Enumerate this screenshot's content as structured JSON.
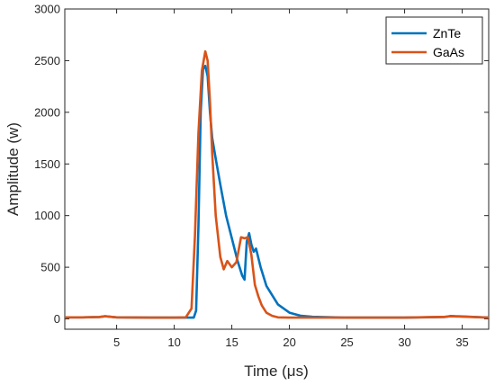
{
  "chart_data": {
    "type": "line",
    "title": "",
    "xlabel": "Time (μs)",
    "ylabel": "Amplitude (w)",
    "xlim": [
      0.5,
      37.3
    ],
    "ylim": [
      -100,
      3000
    ],
    "xticks": [
      5,
      10,
      15,
      20,
      25,
      30,
      35
    ],
    "yticks": [
      0,
      500,
      1000,
      1500,
      2000,
      2500,
      3000
    ],
    "grid": false,
    "legend_position": "top-right",
    "series": [
      {
        "name": "ZnTe",
        "color": "#0072BD",
        "x": [
          0.5,
          2,
          3.5,
          4,
          5,
          8,
          10,
          11,
          11.7,
          11.9,
          12.1,
          12.3,
          12.5,
          12.7,
          12.9,
          13.1,
          13.3,
          13.6,
          14,
          14.5,
          15,
          15.5,
          15.9,
          16.1,
          16.3,
          16.5,
          16.7,
          16.9,
          17.1,
          17.5,
          18,
          19,
          20,
          21,
          22,
          25,
          30,
          33.5,
          34,
          37.3
        ],
        "y": [
          15,
          15,
          18,
          25,
          15,
          12,
          12,
          12,
          12,
          80,
          900,
          2000,
          2420,
          2450,
          2350,
          2000,
          1750,
          1550,
          1300,
          1000,
          780,
          560,
          420,
          380,
          750,
          830,
          720,
          650,
          680,
          500,
          320,
          140,
          60,
          30,
          20,
          12,
          12,
          18,
          28,
          12
        ]
      },
      {
        "name": "GaAs",
        "color": "#D95319",
        "x": [
          0.5,
          2,
          3.5,
          4,
          5,
          8,
          10,
          11,
          11.5,
          11.8,
          12.1,
          12.4,
          12.7,
          12.9,
          13.1,
          13.3,
          13.6,
          14,
          14.3,
          14.6,
          15,
          15.4,
          15.8,
          16.1,
          16.4,
          16.7,
          17,
          17.3,
          17.6,
          18,
          18.5,
          19,
          20,
          22,
          25,
          30,
          33.5,
          34,
          37.3
        ],
        "y": [
          15,
          15,
          18,
          25,
          15,
          12,
          12,
          15,
          100,
          800,
          1800,
          2400,
          2590,
          2500,
          2100,
          1600,
          1000,
          600,
          480,
          560,
          500,
          550,
          790,
          780,
          790,
          620,
          330,
          220,
          130,
          60,
          30,
          15,
          12,
          12,
          12,
          12,
          20,
          25,
          12
        ]
      }
    ]
  }
}
